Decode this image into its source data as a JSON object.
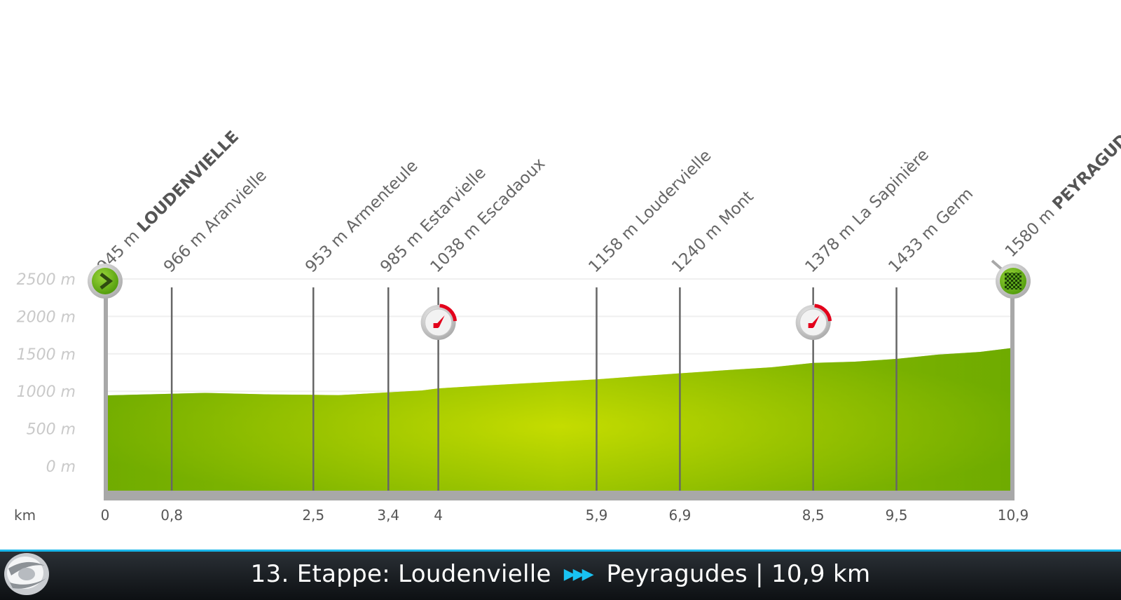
{
  "chart_data": {
    "type": "area",
    "title": "",
    "xlabel": "km",
    "ylabel": "",
    "ylim": [
      0,
      2500
    ],
    "xlim": [
      0,
      10.9
    ],
    "y_ticks": [
      "2500 m",
      "2000 m",
      "1500 m",
      "1000 m",
      "500 m",
      "0 m"
    ],
    "y_tick_values": [
      2500,
      2000,
      1500,
      1000,
      500,
      0
    ],
    "x_ticks": [
      "0",
      "0,8",
      "2,5",
      "3,4",
      "4",
      "5,9",
      "6,9",
      "8,5",
      "9,5",
      "10,9"
    ],
    "profile": {
      "x": [
        0,
        0.8,
        1.2,
        2.0,
        2.5,
        2.8,
        3.4,
        3.8,
        4.0,
        4.6,
        5.2,
        5.9,
        6.4,
        6.9,
        7.5,
        8.0,
        8.5,
        9.0,
        9.5,
        10.0,
        10.5,
        10.9
      ],
      "y": [
        945,
        966,
        978,
        958,
        953,
        948,
        985,
        1010,
        1038,
        1080,
        1115,
        1158,
        1200,
        1240,
        1285,
        1320,
        1378,
        1395,
        1433,
        1490,
        1525,
        1580
      ]
    },
    "waypoints": [
      {
        "km": 0,
        "label": "945 m",
        "name": "LOUDENVIELLE",
        "bold": true,
        "marker": "start"
      },
      {
        "km": 0.8,
        "label": "966 m",
        "name": "Aranvielle"
      },
      {
        "km": 2.5,
        "label": "953 m",
        "name": "Armenteule"
      },
      {
        "km": 3.4,
        "label": "985 m",
        "name": "Estarvielle"
      },
      {
        "km": 4,
        "label": "1038 m",
        "name": "Escadaoux",
        "marker": "timing"
      },
      {
        "km": 5.9,
        "label": "1158 m",
        "name": "Loudervielle"
      },
      {
        "km": 6.9,
        "label": "1240 m",
        "name": "Mont"
      },
      {
        "km": 8.5,
        "label": "1378 m",
        "name": "La Sapinière",
        "marker": "timing"
      },
      {
        "km": 9.5,
        "label": "1433 m",
        "name": "Germ"
      },
      {
        "km": 10.9,
        "label": "1580 m",
        "name": "PEYRAGUDES",
        "bold": true,
        "marker": "finish"
      }
    ],
    "colors": {
      "fill_center": "#c5dc00",
      "fill_edge": "#6aa900",
      "axis": "#a8a8a8",
      "line": "#666666",
      "marker_red": "#e3001b"
    }
  },
  "footer": {
    "title_part1": "13. Etappe:  Loudenvielle",
    "arrows": "▶▶▶",
    "title_part2": "Peyragudes | 10,9 km",
    "logo_icon": "broadcaster-logo-icon",
    "accent_color": "#19b6ea"
  }
}
